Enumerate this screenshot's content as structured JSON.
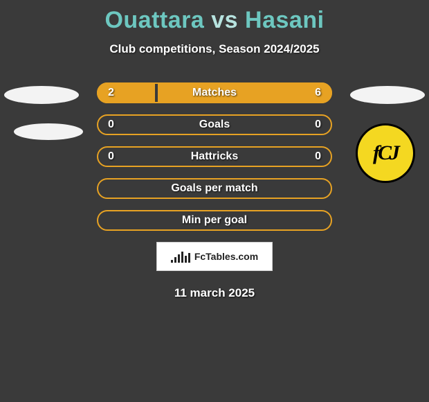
{
  "title": {
    "player1": "Ouattara",
    "vs": "vs",
    "player2": "Hasani",
    "color_player": "#6dc7c0",
    "color_vs": "#b7e3df"
  },
  "subtitle": "Club competitions, Season 2024/2025",
  "rows": [
    {
      "label": "Matches",
      "left": "2",
      "right": "6",
      "left_pct": 25,
      "right_pct": 75,
      "border_color": "#e7a223",
      "fill_color": "#e7a223"
    },
    {
      "label": "Goals",
      "left": "0",
      "right": "0",
      "left_pct": 0,
      "right_pct": 0,
      "border_color": "#e7a223",
      "fill_color": "#e7a223"
    },
    {
      "label": "Hattricks",
      "left": "0",
      "right": "0",
      "left_pct": 0,
      "right_pct": 0,
      "border_color": "#e7a223",
      "fill_color": "#e7a223"
    },
    {
      "label": "Goals per match",
      "left": "",
      "right": "",
      "left_pct": 0,
      "right_pct": 0,
      "border_color": "#e7a223",
      "fill_color": "#e7a223"
    },
    {
      "label": "Min per goal",
      "left": "",
      "right": "",
      "left_pct": 0,
      "right_pct": 0,
      "border_color": "#e7a223",
      "fill_color": "#e7a223"
    }
  ],
  "footer_brand": "FcTables.com",
  "footer_bars": [
    4,
    8,
    12,
    16,
    10,
    14
  ],
  "date": "11 march 2025",
  "background_color": "#3a3a3a",
  "badge": {
    "bg": "#f4d821",
    "border": "#000000",
    "initials": "fCJ"
  }
}
